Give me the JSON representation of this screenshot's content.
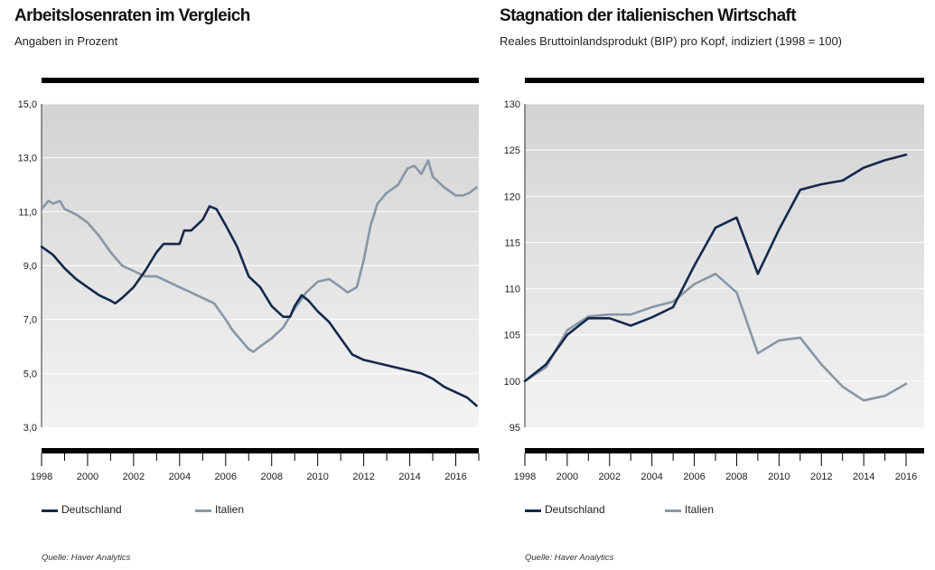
{
  "colors": {
    "deutschland": "#14284b",
    "italien": "#8896a6"
  },
  "charts": [
    {
      "title": "Arbeitslosenraten im Vergleich",
      "subtitle": "Angaben in Prozent",
      "source": "Quelle: Haver Analytics",
      "y_tick_labels": [
        "3,0",
        "5,0",
        "7,0",
        "9,0",
        "11,0",
        "13,0",
        "15,0"
      ],
      "x_tick_labels": [
        "1998",
        "2000",
        "2002",
        "2004",
        "2006",
        "2008",
        "2010",
        "2012",
        "2014",
        "2016"
      ],
      "legend": [
        "Deutschland",
        "Italien"
      ]
    },
    {
      "title": "Stagnation der italienischen Wirtschaft",
      "subtitle": "Reales Bruttoinlandsprodukt (BIP) pro Kopf, indiziert (1998 = 100)",
      "source": "Quelle: Haver Analytics",
      "y_tick_labels": [
        "95",
        "100",
        "105",
        "110",
        "115",
        "120",
        "125",
        "130"
      ],
      "x_tick_labels": [
        "1998",
        "2000",
        "2002",
        "2004",
        "2006",
        "2008",
        "2010",
        "2012",
        "2014",
        "2016"
      ],
      "legend": [
        "Deutschland",
        "Italien"
      ]
    }
  ],
  "chart_data": [
    {
      "type": "line",
      "title": "Arbeitslosenraten im Vergleich",
      "subtitle": "Angaben in Prozent",
      "ylabel": "Angaben in Prozent",
      "xlim": [
        1998,
        2017
      ],
      "ylim": [
        3.0,
        15.0
      ],
      "grid": true,
      "legend_position": "bottom",
      "series": [
        {
          "name": "Deutschland",
          "x": [
            1998,
            1998.5,
            1999,
            1999.5,
            2000,
            2000.5,
            2001,
            2001.2,
            2001.5,
            2002,
            2002.5,
            2003,
            2003.3,
            2003.5,
            2004,
            2004.2,
            2004.5,
            2005,
            2005.3,
            2005.6,
            2006,
            2006.5,
            2007,
            2007.5,
            2008,
            2008.5,
            2008.8,
            2009,
            2009.3,
            2009.6,
            2010,
            2010.5,
            2011,
            2011.5,
            2012,
            2012.5,
            2013,
            2013.5,
            2014,
            2014.5,
            2015,
            2015.5,
            2016,
            2016.5,
            2016.9
          ],
          "y": [
            9.7,
            9.4,
            8.9,
            8.5,
            8.2,
            7.9,
            7.7,
            7.6,
            7.8,
            8.2,
            8.8,
            9.5,
            9.8,
            9.8,
            9.8,
            10.3,
            10.3,
            10.7,
            11.2,
            11.1,
            10.5,
            9.7,
            8.6,
            8.2,
            7.5,
            7.1,
            7.1,
            7.5,
            7.9,
            7.7,
            7.3,
            6.9,
            6.3,
            5.7,
            5.5,
            5.4,
            5.3,
            5.2,
            5.1,
            5.0,
            4.8,
            4.5,
            4.3,
            4.1,
            3.8
          ]
        },
        {
          "name": "Italien",
          "x": [
            1998,
            1998.3,
            1998.5,
            1998.8,
            1999,
            1999.5,
            2000,
            2000.5,
            2001,
            2001.5,
            2002,
            2002.5,
            2003,
            2003.5,
            2004,
            2004.5,
            2005,
            2005.5,
            2006,
            2006.3,
            2006.7,
            2007,
            2007.2,
            2007.5,
            2008,
            2008.5,
            2009,
            2009.5,
            2010,
            2010.5,
            2011,
            2011.3,
            2011.7,
            2012,
            2012.3,
            2012.6,
            2013,
            2013.5,
            2013.9,
            2014.2,
            2014.5,
            2014.8,
            2015,
            2015.5,
            2016,
            2016.3,
            2016.6,
            2016.9
          ],
          "y": [
            11.1,
            11.4,
            11.3,
            11.4,
            11.1,
            10.9,
            10.6,
            10.1,
            9.5,
            9.0,
            8.8,
            8.6,
            8.6,
            8.4,
            8.2,
            8.0,
            7.8,
            7.6,
            7.0,
            6.6,
            6.2,
            5.9,
            5.8,
            6.0,
            6.3,
            6.7,
            7.4,
            8.0,
            8.4,
            8.5,
            8.2,
            8.0,
            8.2,
            9.2,
            10.5,
            11.3,
            11.7,
            12.0,
            12.6,
            12.7,
            12.4,
            12.9,
            12.3,
            11.9,
            11.6,
            11.6,
            11.7,
            11.9
          ]
        }
      ]
    },
    {
      "type": "line",
      "title": "Stagnation der italienischen Wirtschaft",
      "subtitle": "Reales Bruttoinlandsprodukt (BIP) pro Kopf, indiziert (1998 = 100)",
      "xlim": [
        1998,
        2016
      ],
      "ylim": [
        95,
        130
      ],
      "grid": true,
      "legend_position": "bottom",
      "series": [
        {
          "name": "Deutschland",
          "x": [
            1998,
            1999,
            2000,
            2001,
            2002,
            2003,
            2004,
            2005,
            2006,
            2007,
            2008,
            2009,
            2010,
            2011,
            2012,
            2013,
            2014,
            2015,
            2016
          ],
          "y": [
            100.0,
            101.8,
            105.0,
            106.8,
            106.8,
            106.0,
            106.9,
            108.0,
            112.5,
            116.6,
            117.7,
            111.6,
            116.4,
            120.7,
            121.3,
            121.7,
            123.1,
            123.9,
            124.5
          ]
        },
        {
          "name": "Italien",
          "x": [
            1998,
            1999,
            2000,
            2001,
            2002,
            2003,
            2004,
            2005,
            2006,
            2007,
            2008,
            2009,
            2010,
            2011,
            2012,
            2013,
            2014,
            2015,
            2016
          ],
          "y": [
            100.0,
            101.5,
            105.5,
            107.0,
            107.2,
            107.2,
            108.0,
            108.6,
            110.5,
            111.6,
            109.6,
            103.0,
            104.4,
            104.7,
            101.8,
            99.4,
            97.9,
            98.4,
            99.7
          ]
        }
      ]
    }
  ]
}
